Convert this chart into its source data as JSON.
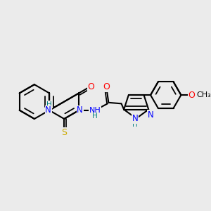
{
  "bg_color": "#ebebeb",
  "bond_color": "#000000",
  "N_color": "#0000ff",
  "O_color": "#ff0000",
  "S_color": "#ccaa00",
  "H_color": "#008080",
  "bond_lw": 1.5,
  "figsize": [
    3.0,
    3.0
  ],
  "dpi": 100,
  "xlim": [
    0,
    10
  ],
  "ylim": [
    0,
    10
  ]
}
